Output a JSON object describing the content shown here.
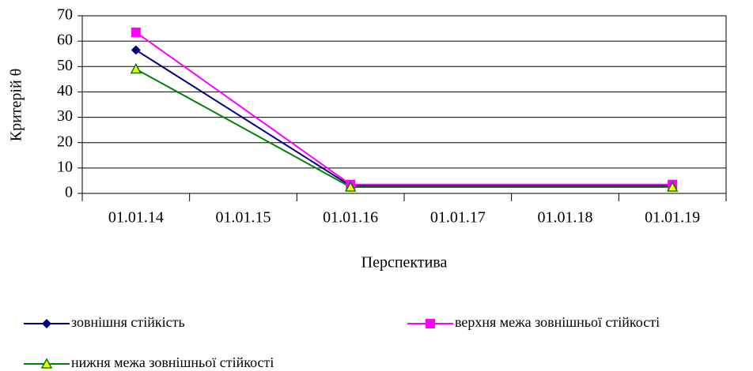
{
  "chart_data": {
    "type": "line",
    "x_label": "Перспектива",
    "y_label": "Критерій θ",
    "categories": [
      "01.01.14",
      "01.01.15",
      "01.01.16",
      "01.01.17",
      "01.01.18",
      "01.01.19"
    ],
    "connect_gaps": true,
    "series": [
      {
        "name": "зовнішня стійкість",
        "color": "#000080",
        "marker": "diamond",
        "values": [
          56.5,
          null,
          3,
          null,
          null,
          3
        ]
      },
      {
        "name": "верхня межа зовнішньої стійкості",
        "color": "#ff00ff",
        "marker": "square",
        "values": [
          63.5,
          null,
          3.5,
          null,
          null,
          3.5
        ]
      },
      {
        "name": "нижня межа зовнішньої стійкості",
        "color": "#008000",
        "marker": "triangle",
        "marker_fill": "#ffff00",
        "values": [
          49,
          null,
          2.5,
          null,
          null,
          2.5
        ]
      }
    ],
    "ylim": [
      0,
      70
    ],
    "yticks": [
      0,
      10,
      20,
      30,
      40,
      50,
      60,
      70
    ],
    "grid": true
  }
}
